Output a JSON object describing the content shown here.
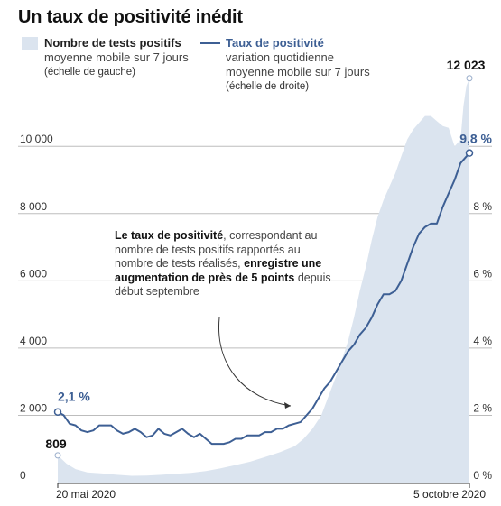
{
  "title": "Un taux de positivité inédit",
  "legend": {
    "tests": {
      "name": "Nombre de tests positifs",
      "desc": "moyenne mobile sur 7 jours",
      "scale": "(échelle de gauche)"
    },
    "rate": {
      "name": "Taux de positivité",
      "desc1": "variation quotidienne",
      "desc2": "moyenne mobile sur 7 jours",
      "scale": "(échelle de droite)"
    }
  },
  "annotation": {
    "part1": "Le taux de positivité",
    "part2": ", correspondant au nombre de tests positifs rapportés au nombre de tests réalisés, ",
    "part3": "enregistre une augmentation de près de 5 points",
    "part4": " depuis début septembre"
  },
  "callouts": {
    "tests_start": "809",
    "tests_end": "12 023",
    "rate_start": "2,1 %",
    "rate_end": "9,8 %"
  },
  "colors": {
    "area": "#dbe4ef",
    "line": "#3d5f94",
    "grid": "#bdbdbd",
    "axis": "#333333"
  },
  "chart_data": {
    "type": "area",
    "x_labels": [
      "20 mai 2020",
      "5 octobre 2020"
    ],
    "x_range": [
      0,
      139
    ],
    "left_axis": {
      "ticks": [
        0,
        2000,
        4000,
        6000,
        8000,
        10000
      ],
      "tick_labels": [
        "0",
        "2 000",
        "4 000",
        "6 000",
        "8 000",
        "10 000"
      ],
      "ylim": [
        0,
        12500
      ]
    },
    "right_axis": {
      "ticks": [
        0,
        2,
        4,
        6,
        8
      ],
      "tick_labels": [
        "0 %",
        "2 %",
        "4 %",
        "6 %",
        "8 %"
      ],
      "ylim": [
        0,
        12.5
      ]
    },
    "grid": true,
    "series": [
      {
        "name": "Nombre de tests positifs",
        "axis": "left",
        "kind": "area",
        "points": [
          [
            0,
            809
          ],
          [
            3,
            560
          ],
          [
            6,
            400
          ],
          [
            10,
            300
          ],
          [
            15,
            270
          ],
          [
            20,
            230
          ],
          [
            25,
            200
          ],
          [
            30,
            210
          ],
          [
            35,
            230
          ],
          [
            40,
            260
          ],
          [
            45,
            290
          ],
          [
            50,
            340
          ],
          [
            55,
            420
          ],
          [
            60,
            520
          ],
          [
            65,
            620
          ],
          [
            70,
            760
          ],
          [
            75,
            900
          ],
          [
            80,
            1080
          ],
          [
            83,
            1300
          ],
          [
            86,
            1600
          ],
          [
            89,
            2000
          ],
          [
            92,
            2700
          ],
          [
            95,
            3400
          ],
          [
            98,
            4200
          ],
          [
            100,
            4900
          ],
          [
            102,
            5700
          ],
          [
            104,
            6400
          ],
          [
            106,
            7200
          ],
          [
            108,
            7900
          ],
          [
            110,
            8400
          ],
          [
            112,
            8800
          ],
          [
            114,
            9200
          ],
          [
            116,
            9700
          ],
          [
            118,
            10200
          ],
          [
            120,
            10500
          ],
          [
            122,
            10700
          ],
          [
            124,
            10900
          ],
          [
            126,
            10900
          ],
          [
            128,
            10750
          ],
          [
            130,
            10600
          ],
          [
            132,
            10550
          ],
          [
            134,
            10000
          ],
          [
            136,
            10200
          ],
          [
            137,
            11200
          ],
          [
            138,
            11800
          ],
          [
            139,
            12023
          ]
        ]
      },
      {
        "name": "Taux de positivité",
        "axis": "right",
        "kind": "line",
        "points": [
          [
            0,
            2.1
          ],
          [
            2,
            2.0
          ],
          [
            4,
            1.75
          ],
          [
            6,
            1.7
          ],
          [
            8,
            1.55
          ],
          [
            10,
            1.5
          ],
          [
            12,
            1.55
          ],
          [
            14,
            1.7
          ],
          [
            16,
            1.7
          ],
          [
            18,
            1.7
          ],
          [
            20,
            1.55
          ],
          [
            22,
            1.45
          ],
          [
            24,
            1.5
          ],
          [
            26,
            1.6
          ],
          [
            28,
            1.5
          ],
          [
            30,
            1.35
          ],
          [
            32,
            1.4
          ],
          [
            34,
            1.6
          ],
          [
            36,
            1.45
          ],
          [
            38,
            1.4
          ],
          [
            40,
            1.5
          ],
          [
            42,
            1.6
          ],
          [
            44,
            1.45
          ],
          [
            46,
            1.35
          ],
          [
            48,
            1.45
          ],
          [
            50,
            1.3
          ],
          [
            52,
            1.15
          ],
          [
            54,
            1.15
          ],
          [
            56,
            1.15
          ],
          [
            58,
            1.2
          ],
          [
            60,
            1.3
          ],
          [
            62,
            1.3
          ],
          [
            64,
            1.4
          ],
          [
            66,
            1.4
          ],
          [
            68,
            1.4
          ],
          [
            70,
            1.5
          ],
          [
            72,
            1.5
          ],
          [
            74,
            1.6
          ],
          [
            76,
            1.6
          ],
          [
            78,
            1.7
          ],
          [
            80,
            1.75
          ],
          [
            82,
            1.8
          ],
          [
            84,
            2.0
          ],
          [
            86,
            2.2
          ],
          [
            88,
            2.5
          ],
          [
            90,
            2.8
          ],
          [
            92,
            3.0
          ],
          [
            94,
            3.3
          ],
          [
            96,
            3.6
          ],
          [
            98,
            3.9
          ],
          [
            100,
            4.1
          ],
          [
            102,
            4.4
          ],
          [
            104,
            4.6
          ],
          [
            106,
            4.9
          ],
          [
            108,
            5.3
          ],
          [
            110,
            5.6
          ],
          [
            112,
            5.6
          ],
          [
            114,
            5.7
          ],
          [
            116,
            6.0
          ],
          [
            118,
            6.5
          ],
          [
            120,
            7.0
          ],
          [
            122,
            7.4
          ],
          [
            124,
            7.6
          ],
          [
            126,
            7.7
          ],
          [
            128,
            7.7
          ],
          [
            130,
            8.2
          ],
          [
            132,
            8.6
          ],
          [
            134,
            9.0
          ],
          [
            136,
            9.5
          ],
          [
            139,
            9.8
          ]
        ]
      }
    ]
  }
}
